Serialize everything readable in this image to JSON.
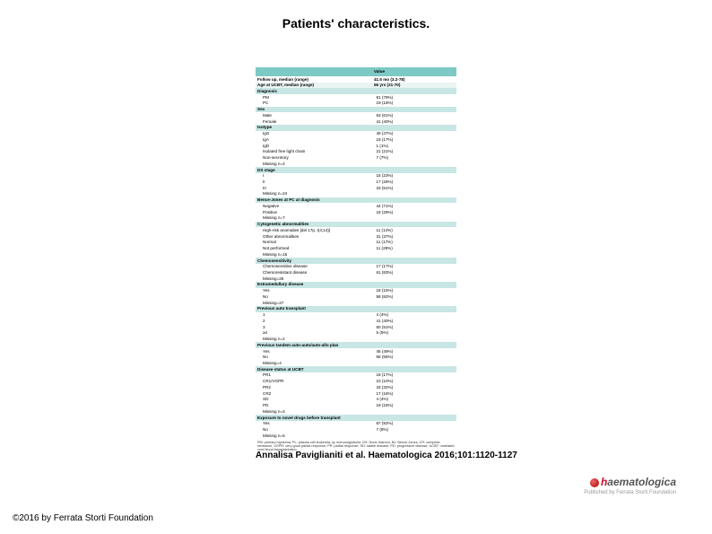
{
  "title": "Patients' characteristics.",
  "citation": "Annalisa Paviglianiti et al. Haematologica 2016;101:1120-1127",
  "copyright": "©2016 by Ferrata Storti Foundation",
  "logo": {
    "brand_h": "h",
    "brand_rest": "aematologica",
    "sub": "Published by Ferrata Storti Foundation"
  },
  "table": {
    "header": {
      "left": "",
      "right": "Value"
    },
    "rows": [
      {
        "cls": "reg bold",
        "l": "Follow up, median (range)",
        "r": "41.5 mo (3.2-78)"
      },
      {
        "cls": "stripe bold",
        "l": "Age at UCBT, median (range)",
        "r": "56 yrs (21-70)"
      },
      {
        "cls": "hdr",
        "l": "Diagnosis",
        "r": ""
      },
      {
        "cls": "reg",
        "l": "PM",
        "sub": true,
        "r": "81 (79%)"
      },
      {
        "cls": "reg",
        "l": "PC",
        "sub": true,
        "r": "19 (18%)"
      },
      {
        "cls": "hdr",
        "l": "Sex",
        "r": ""
      },
      {
        "cls": "reg",
        "l": "Male",
        "sub": true,
        "r": "63 (61%)"
      },
      {
        "cls": "reg",
        "l": "Female",
        "sub": true,
        "r": "41 (40%)"
      },
      {
        "cls": "hdr",
        "l": "Isotype",
        "r": ""
      },
      {
        "cls": "reg",
        "l": "IgG",
        "sub": true,
        "r": "49 (47%)"
      },
      {
        "cls": "reg",
        "l": "IgA",
        "sub": true,
        "r": "19 (17%)"
      },
      {
        "cls": "reg",
        "l": "IgD",
        "sub": true,
        "r": "1 (1%)"
      },
      {
        "cls": "reg",
        "l": "Isolated free light chain",
        "sub": true,
        "r": "21 (21%)"
      },
      {
        "cls": "reg",
        "l": "Non-secretory",
        "sub": true,
        "r": "7 (7%)"
      },
      {
        "cls": "reg",
        "l": "Missing n=4",
        "sub": true,
        "r": ""
      },
      {
        "cls": "hdr",
        "l": "DS stage",
        "r": ""
      },
      {
        "cls": "reg",
        "l": "I",
        "sub": true,
        "r": "15 (23%)"
      },
      {
        "cls": "reg",
        "l": "II",
        "sub": true,
        "r": "17 (26%)"
      },
      {
        "cls": "reg",
        "l": "III",
        "sub": true,
        "r": "33 (51%)"
      },
      {
        "cls": "reg",
        "l": "Missing n=24",
        "sub": true,
        "r": ""
      },
      {
        "cls": "hdr",
        "l": "Bence-Jones at PC at diagnosis",
        "r": ""
      },
      {
        "cls": "reg",
        "l": "Negative",
        "sub": true,
        "r": "44 (71%)"
      },
      {
        "cls": "reg",
        "l": "Positive",
        "sub": true,
        "r": "18 (29%)"
      },
      {
        "cls": "reg",
        "l": "Missing n=7",
        "sub": true,
        "r": ""
      },
      {
        "cls": "hdr",
        "l": "Cytogenetic abnormalities",
        "r": ""
      },
      {
        "cls": "reg",
        "l": "High-risk anomalies [del 17p, t(4;14)]",
        "sub": true,
        "r": "11 (14%)"
      },
      {
        "cls": "reg",
        "l": "Other abnormalities",
        "sub": true,
        "r": "31 (37%)"
      },
      {
        "cls": "reg",
        "l": "Normal",
        "sub": true,
        "r": "11 (17%)"
      },
      {
        "cls": "reg",
        "l": "Not performed",
        "sub": true,
        "r": "11 (29%)"
      },
      {
        "cls": "reg",
        "l": "Missing n=15",
        "sub": true,
        "r": ""
      },
      {
        "cls": "hdr",
        "l": "Chemosensitivity",
        "r": ""
      },
      {
        "cls": "reg",
        "l": "Chemosensitive disease",
        "sub": true,
        "r": "17 (17%)"
      },
      {
        "cls": "reg",
        "l": "Chemoresistant disease",
        "sub": true,
        "r": "61 (83%)"
      },
      {
        "cls": "reg",
        "l": "Missing=25",
        "sub": true,
        "r": ""
      },
      {
        "cls": "hdr",
        "l": "Extramedullary disease",
        "r": ""
      },
      {
        "cls": "reg",
        "l": "Yes",
        "sub": true,
        "r": "18 (15%)"
      },
      {
        "cls": "reg",
        "l": "No",
        "sub": true,
        "r": "58 (82%)"
      },
      {
        "cls": "reg",
        "l": "Missing=27",
        "sub": true,
        "r": ""
      },
      {
        "cls": "hdr",
        "l": "Previous auto transplant",
        "r": ""
      },
      {
        "cls": "reg",
        "l": "1",
        "sub": true,
        "r": "4 (4%)"
      },
      {
        "cls": "reg",
        "l": "2",
        "sub": true,
        "r": "41 (40%)"
      },
      {
        "cls": "reg",
        "l": "3",
        "sub": true,
        "r": "50 (51%)"
      },
      {
        "cls": "reg",
        "l": "≥4",
        "sub": true,
        "r": "5 (5%)"
      },
      {
        "cls": "reg",
        "l": "Missing n=2",
        "sub": true,
        "r": ""
      },
      {
        "cls": "hdr",
        "l": "Previous tandem auto-auto/auto-allo plan",
        "r": ""
      },
      {
        "cls": "reg",
        "l": "Yes",
        "sub": true,
        "r": "45 (49%)"
      },
      {
        "cls": "reg",
        "l": "No",
        "sub": true,
        "r": "56 (55%)"
      },
      {
        "cls": "reg",
        "l": "Missing=4",
        "sub": true,
        "r": ""
      },
      {
        "cls": "hdr",
        "l": "Disease status at UCBT",
        "r": ""
      },
      {
        "cls": "reg",
        "l": "PR1",
        "sub": true,
        "r": "18 (17%)"
      },
      {
        "cls": "reg",
        "l": "CR1/VGPR",
        "sub": true,
        "r": "10 (10%)"
      },
      {
        "cls": "reg",
        "l": "PR2",
        "sub": true,
        "r": "33 (32%)"
      },
      {
        "cls": "reg",
        "l": "CR2",
        "sub": true,
        "r": "17 (16%)"
      },
      {
        "cls": "reg",
        "l": "SD",
        "sub": true,
        "r": "4 (4%)"
      },
      {
        "cls": "reg",
        "l": "PD",
        "sub": true,
        "r": "19 (18%)"
      },
      {
        "cls": "reg",
        "l": "Missing n=4",
        "sub": true,
        "r": ""
      },
      {
        "cls": "hdr",
        "l": "Exposure to novel drugs before transplant",
        "r": ""
      },
      {
        "cls": "reg",
        "l": "Yes",
        "sub": true,
        "r": "87 (92%)"
      },
      {
        "cls": "reg",
        "l": "No",
        "sub": true,
        "r": "7 (8%)"
      },
      {
        "cls": "reg",
        "l": "Missing n=5",
        "sub": true,
        "r": ""
      }
    ],
    "footnote": "PM: primary myeloma; PL: plasma cell leukemia; Ig: immunoglobulin; DS: Durie-Salmon; BJ: Bence-Jones; CR: complete remission; VGPR: very good partial response; PR: partial response; SD: stable disease; PD: progressive disease; UCBT: unrelated cord blood transplantation."
  },
  "colors": {
    "header_bg": "#7dc9c5",
    "subheader_bg": "#c7e6e4",
    "stripe_bg": "#eaf4f3",
    "text": "#000000",
    "logo_red": "#c8102e"
  }
}
